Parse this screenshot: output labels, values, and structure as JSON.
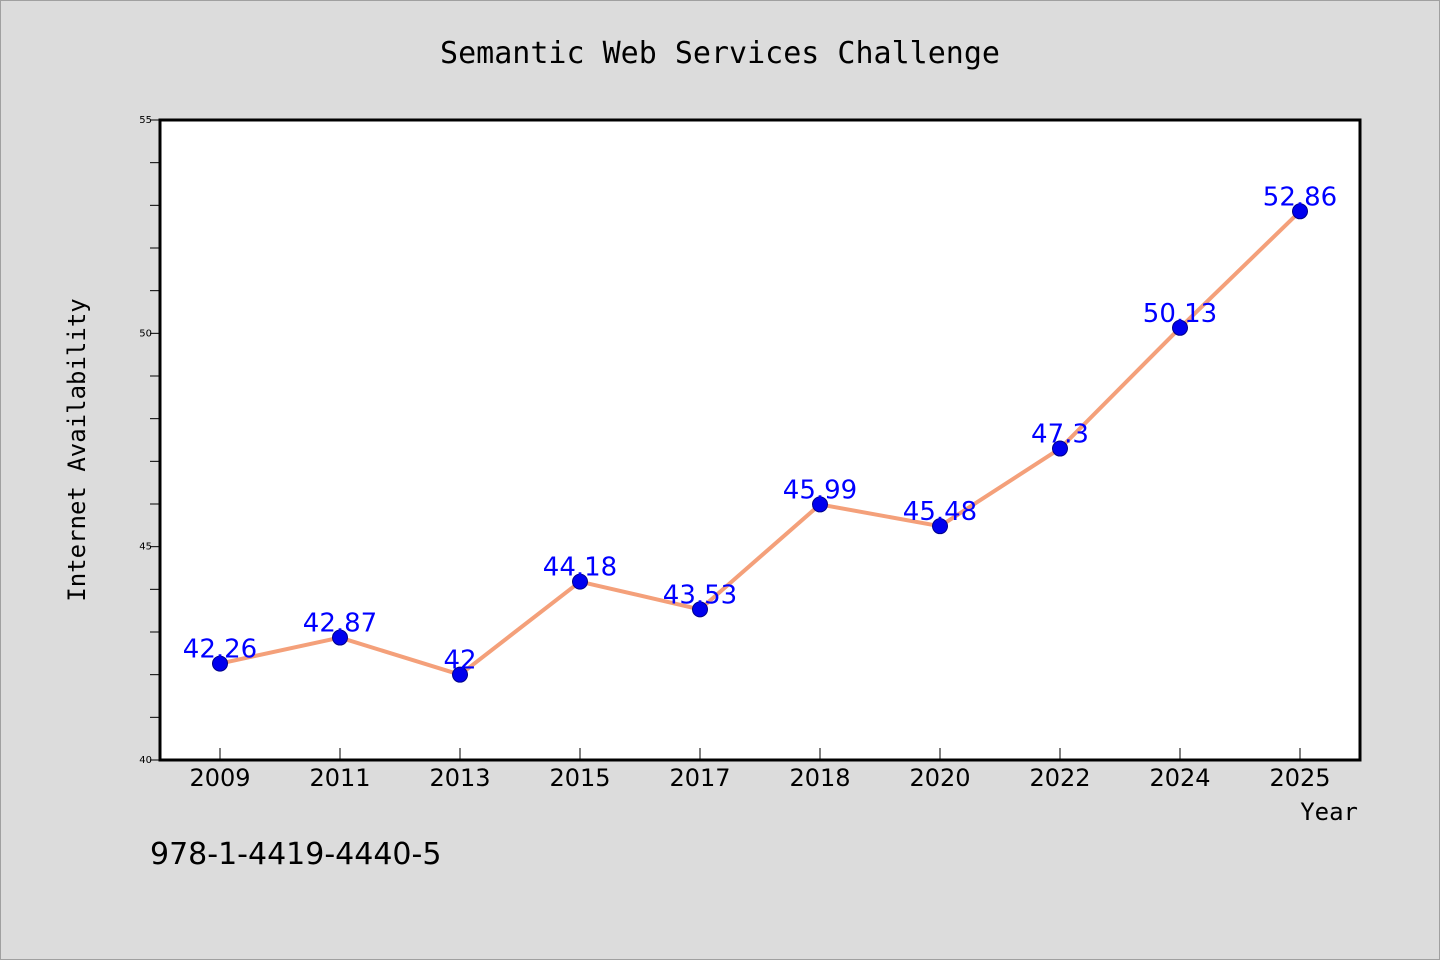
{
  "isbn_text": "978-1-4419-4440-5",
  "colors": {
    "background": "#dcdcdc",
    "plot_background": "#ffffff",
    "line": "#f4a07a",
    "marker": "#0000ee",
    "data_label": "#0000ff"
  },
  "chart_data": {
    "type": "line",
    "title": "Semantic Web Services Challenge",
    "xlabel": "Year",
    "ylabel": "Internet Availability",
    "categories": [
      "2009",
      "2011",
      "2013",
      "2015",
      "2017",
      "2018",
      "2020",
      "2022",
      "2024",
      "2025"
    ],
    "series": [
      {
        "values": [
          42.26,
          42.87,
          42,
          44.18,
          43.53,
          45.99,
          45.48,
          47.3,
          50.13,
          52.86
        ],
        "labels": [
          "42.26",
          "42.87",
          "42",
          "44.18",
          "43.53",
          "45.99",
          "45.48",
          "47.3",
          "50.13",
          "52.86"
        ]
      }
    ],
    "ylim": [
      40,
      55
    ],
    "yticks": [
      "40",
      "45",
      "50",
      "55"
    ],
    "y_minor_step": 1,
    "grid": false,
    "legend": "none"
  }
}
